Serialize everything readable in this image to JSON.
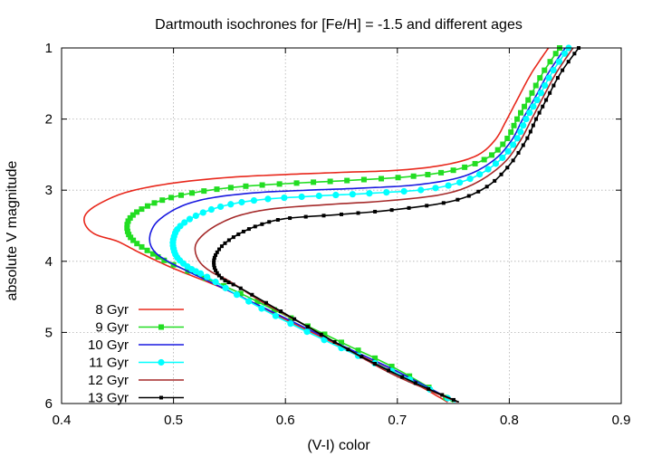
{
  "chart_data": {
    "type": "line",
    "title": "Dartmouth isochrones for [Fe/H] = -1.5 and different ages",
    "xlabel": "(V-I) color",
    "ylabel": "absolute V magnitude",
    "xlim": [
      0.4,
      0.9
    ],
    "ylim": [
      6,
      1
    ],
    "y_inverted": true,
    "grid": true,
    "legend_position": "bottom-left",
    "x_ticks": [
      "0.4",
      "0.5",
      "0.6",
      "0.7",
      "0.8",
      "0.9"
    ],
    "y_ticks": [
      "1",
      "2",
      "3",
      "4",
      "5",
      "6"
    ],
    "series": [
      {
        "name": "8 Gyr",
        "color": "#e8281c",
        "marker": "none",
        "x": [
          0.835,
          0.82,
          0.808,
          0.798,
          0.787,
          0.77,
          0.74,
          0.7,
          0.65,
          0.6,
          0.55,
          0.5,
          0.46,
          0.435,
          0.422,
          0.421,
          0.43,
          0.45,
          0.47,
          0.5,
          0.55,
          0.6,
          0.65,
          0.7,
          0.745
        ],
        "y": [
          1.0,
          1.35,
          1.7,
          2.0,
          2.3,
          2.52,
          2.65,
          2.72,
          2.75,
          2.78,
          2.82,
          2.9,
          3.02,
          3.18,
          3.33,
          3.48,
          3.62,
          3.72,
          3.88,
          4.1,
          4.42,
          4.82,
          5.2,
          5.58,
          5.98
        ]
      },
      {
        "name": "9 Gyr",
        "color": "#22dd22",
        "marker": "square",
        "x": [
          0.845,
          0.83,
          0.818,
          0.807,
          0.797,
          0.78,
          0.75,
          0.71,
          0.66,
          0.61,
          0.56,
          0.52,
          0.49,
          0.47,
          0.46,
          0.459,
          0.465,
          0.48,
          0.5,
          0.55,
          0.6,
          0.65,
          0.7,
          0.75
        ],
        "y": [
          1.0,
          1.35,
          1.7,
          2.0,
          2.3,
          2.55,
          2.72,
          2.81,
          2.86,
          2.9,
          2.95,
          3.03,
          3.14,
          3.28,
          3.42,
          3.58,
          3.72,
          3.88,
          4.05,
          4.38,
          4.76,
          5.14,
          5.52,
          5.98
        ]
      },
      {
        "name": "10 Gyr",
        "color": "#1818e0",
        "marker": "none",
        "x": [
          0.85,
          0.835,
          0.823,
          0.812,
          0.802,
          0.786,
          0.76,
          0.72,
          0.67,
          0.62,
          0.57,
          0.53,
          0.505,
          0.487,
          0.48,
          0.479,
          0.484,
          0.495,
          0.51,
          0.55,
          0.6,
          0.65,
          0.7,
          0.752
        ],
        "y": [
          1.0,
          1.35,
          1.7,
          2.0,
          2.3,
          2.58,
          2.8,
          2.92,
          2.97,
          3.0,
          3.04,
          3.12,
          3.24,
          3.42,
          3.58,
          3.74,
          3.88,
          4.0,
          4.12,
          4.42,
          4.8,
          5.18,
          5.55,
          5.98
        ]
      },
      {
        "name": "11 Gyr",
        "color": "#00ffff",
        "marker": "circle",
        "x": [
          0.853,
          0.838,
          0.826,
          0.815,
          0.806,
          0.79,
          0.765,
          0.73,
          0.68,
          0.63,
          0.58,
          0.545,
          0.52,
          0.505,
          0.5,
          0.5,
          0.504,
          0.515,
          0.53,
          0.56,
          0.6,
          0.65,
          0.7,
          0.752
        ],
        "y": [
          1.0,
          1.35,
          1.7,
          2.0,
          2.3,
          2.6,
          2.84,
          2.98,
          3.04,
          3.08,
          3.13,
          3.22,
          3.36,
          3.52,
          3.68,
          3.82,
          3.96,
          4.1,
          4.22,
          4.5,
          4.84,
          5.22,
          5.58,
          5.98
        ]
      },
      {
        "name": "12 Gyr",
        "color": "#a52a2a",
        "marker": "none",
        "x": [
          0.857,
          0.842,
          0.83,
          0.82,
          0.81,
          0.795,
          0.77,
          0.74,
          0.69,
          0.64,
          0.59,
          0.56,
          0.54,
          0.527,
          0.52,
          0.52,
          0.525,
          0.535,
          0.55,
          0.58,
          0.62,
          0.66,
          0.7,
          0.754
        ],
        "y": [
          1.0,
          1.35,
          1.7,
          2.0,
          2.3,
          2.62,
          2.9,
          3.06,
          3.15,
          3.2,
          3.26,
          3.35,
          3.48,
          3.62,
          3.76,
          3.9,
          4.04,
          4.16,
          4.28,
          4.58,
          4.92,
          5.28,
          5.62,
          5.98
        ]
      },
      {
        "name": "13 Gyr",
        "color": "#000000",
        "marker": "small-square",
        "x": [
          0.862,
          0.846,
          0.834,
          0.824,
          0.815,
          0.8,
          0.78,
          0.75,
          0.7,
          0.65,
          0.6,
          0.575,
          0.558,
          0.545,
          0.538,
          0.536,
          0.538,
          0.545,
          0.56,
          0.6,
          0.64,
          0.68,
          0.72,
          0.755
        ],
        "y": [
          1.0,
          1.35,
          1.7,
          2.0,
          2.3,
          2.65,
          2.95,
          3.15,
          3.27,
          3.34,
          3.4,
          3.5,
          3.62,
          3.76,
          3.9,
          4.02,
          4.14,
          4.26,
          4.38,
          4.74,
          5.1,
          5.44,
          5.74,
          5.98
        ]
      }
    ]
  }
}
